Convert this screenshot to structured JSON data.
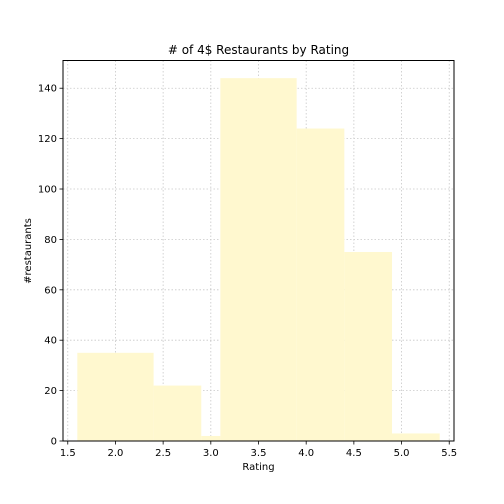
{
  "chart_data": {
    "type": "bar",
    "title": "# of 4$ Restaurants by Rating",
    "xlabel": "Rating",
    "ylabel": "#restaurants",
    "xlim": [
      1.45,
      5.55
    ],
    "ylim": [
      0,
      151
    ],
    "xticks": [
      1.5,
      2.0,
      2.5,
      3.0,
      3.5,
      4.0,
      4.5,
      5.0,
      5.5
    ],
    "xtick_labels": [
      "1.5",
      "2.0",
      "2.5",
      "3.0",
      "3.5",
      "4.0",
      "4.5",
      "5.0",
      "5.5"
    ],
    "yticks": [
      0,
      20,
      40,
      60,
      80,
      100,
      120,
      140
    ],
    "ytick_labels": [
      "0",
      "20",
      "40",
      "60",
      "80",
      "100",
      "120",
      "140"
    ],
    "grid": true,
    "bars": [
      {
        "x0": 1.6,
        "x1": 2.4,
        "value": 35
      },
      {
        "x0": 2.4,
        "x1": 2.9,
        "value": 22
      },
      {
        "x0": 2.9,
        "x1": 3.1,
        "value": 2
      },
      {
        "x0": 3.1,
        "x1": 3.9,
        "value": 144
      },
      {
        "x0": 3.9,
        "x1": 4.4,
        "value": 124
      },
      {
        "x0": 4.4,
        "x1": 4.9,
        "value": 75
      },
      {
        "x0": 4.9,
        "x1": 5.4,
        "value": 3
      }
    ],
    "bar_color": "#fff8cf"
  }
}
